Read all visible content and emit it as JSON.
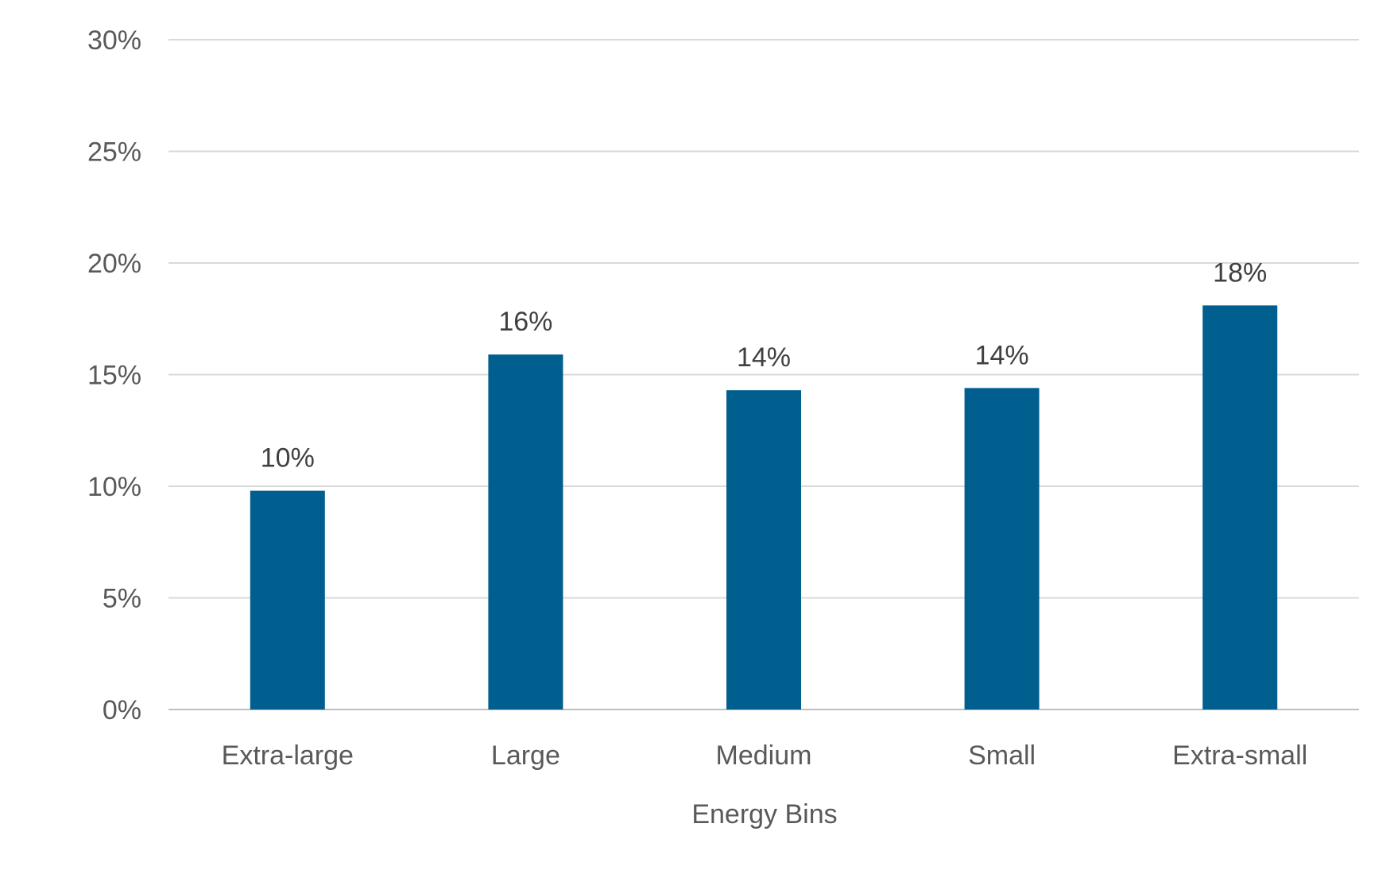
{
  "chart_data": {
    "type": "bar",
    "categories": [
      "Extra-large",
      "Large",
      "Medium",
      "Small",
      "Extra-small"
    ],
    "values": [
      10,
      16,
      14,
      14,
      18
    ],
    "data_labels": [
      "10%",
      "16%",
      "14%",
      "14%",
      "18%"
    ],
    "plotted_values": [
      9.8,
      15.9,
      14.3,
      14.4,
      18.1
    ],
    "title": "",
    "xlabel": "Energy Bins",
    "ylabel": "",
    "ylim": [
      0,
      30
    ],
    "yticks": [
      0,
      5,
      10,
      15,
      20,
      25,
      30
    ],
    "ytick_labels": [
      "0%",
      "5%",
      "10%",
      "15%",
      "20%",
      "25%",
      "30%"
    ],
    "grid": true,
    "legend": "none",
    "bar_color": "#005f8e"
  }
}
